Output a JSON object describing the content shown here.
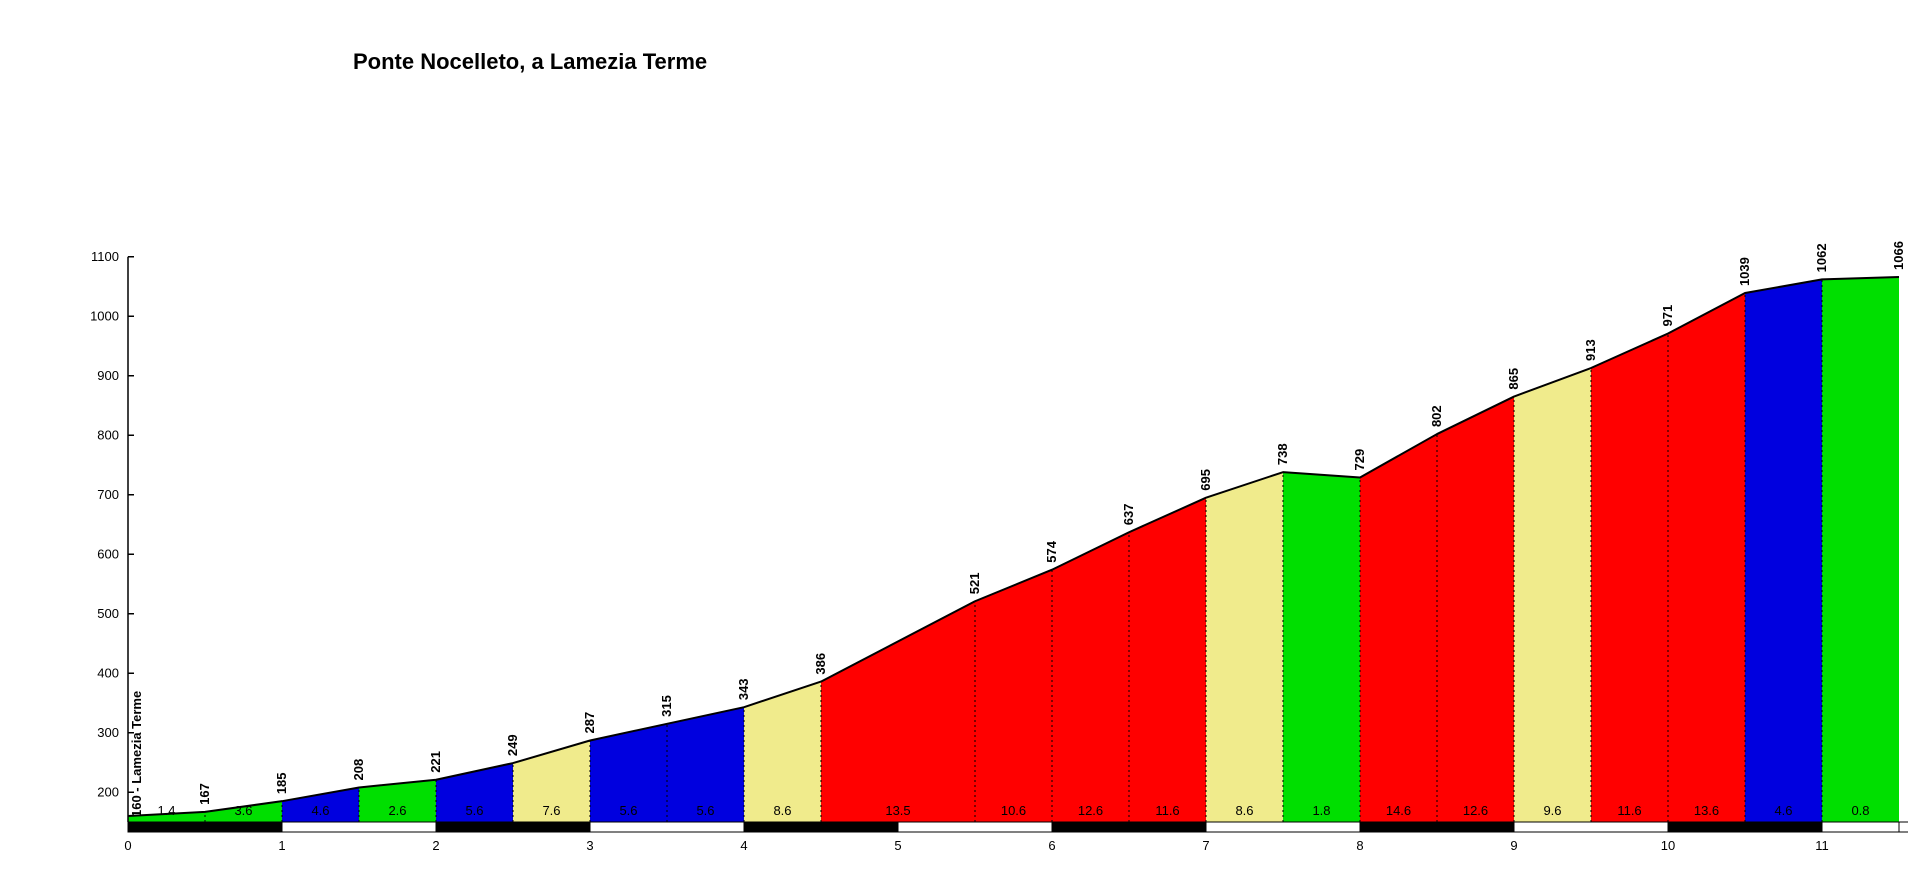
{
  "background": "#ffffff",
  "chart_data": {
    "type": "area",
    "title": "Ponte Nocelleto, a Lamezia Terme",
    "start_label": "160 - Lamezia Terme",
    "x_unit": "km",
    "y_unit": "m",
    "xlim": [
      0,
      11.5
    ],
    "ylim": [
      150,
      1100
    ],
    "x_ticks": [
      0,
      1,
      2,
      3,
      4,
      5,
      6,
      7,
      8,
      9,
      10,
      11
    ],
    "y_ticks": [
      200,
      300,
      400,
      500,
      600,
      700,
      800,
      900,
      1000,
      1100
    ],
    "grid": false,
    "legend": "none",
    "start_elevation": 160,
    "end_elevation": 1066,
    "gradient_colors": {
      "green": "#00DF00",
      "blue": "#0000DF",
      "yellow": "#F0EB8C",
      "red": "#FF0000"
    },
    "line_color": "#000000",
    "km_bar_colors": {
      "even": "#000000",
      "odd": "#FFFFFF"
    },
    "segments": [
      {
        "from_km": 0.0,
        "to_km": 0.5,
        "end_elevation": 167,
        "gradient": "1.4",
        "color": "green"
      },
      {
        "from_km": 0.5,
        "to_km": 1.0,
        "end_elevation": 185,
        "gradient": "3.6",
        "color": "green"
      },
      {
        "from_km": 1.0,
        "to_km": 1.5,
        "end_elevation": 208,
        "gradient": "4.6",
        "color": "blue"
      },
      {
        "from_km": 1.5,
        "to_km": 2.0,
        "end_elevation": 221,
        "gradient": "2.6",
        "color": "green"
      },
      {
        "from_km": 2.0,
        "to_km": 2.5,
        "end_elevation": 249,
        "gradient": "5.6",
        "color": "blue"
      },
      {
        "from_km": 2.5,
        "to_km": 3.0,
        "end_elevation": 287,
        "gradient": "7.6",
        "color": "yellow"
      },
      {
        "from_km": 3.0,
        "to_km": 3.5,
        "end_elevation": 315,
        "gradient": "5.6",
        "color": "blue"
      },
      {
        "from_km": 3.5,
        "to_km": 4.0,
        "end_elevation": 343,
        "gradient": "5.6",
        "color": "blue"
      },
      {
        "from_km": 4.0,
        "to_km": 4.5,
        "end_elevation": 386,
        "gradient": "8.6",
        "color": "yellow"
      },
      {
        "from_km": 4.5,
        "to_km": 5.5,
        "end_elevation": 521,
        "gradient": "13.5",
        "color": "red"
      },
      {
        "from_km": 5.5,
        "to_km": 6.0,
        "end_elevation": 574,
        "gradient": "10.6",
        "color": "red"
      },
      {
        "from_km": 6.0,
        "to_km": 6.5,
        "end_elevation": 637,
        "gradient": "12.6",
        "color": "red"
      },
      {
        "from_km": 6.5,
        "to_km": 7.0,
        "end_elevation": 695,
        "gradient": "11.6",
        "color": "red"
      },
      {
        "from_km": 7.0,
        "to_km": 7.5,
        "end_elevation": 738,
        "gradient": "8.6",
        "color": "yellow"
      },
      {
        "from_km": 7.5,
        "to_km": 8.0,
        "end_elevation": 729,
        "gradient": "1.8",
        "color": "green"
      },
      {
        "from_km": 8.0,
        "to_km": 8.5,
        "end_elevation": 802,
        "gradient": "14.6",
        "color": "red"
      },
      {
        "from_km": 8.5,
        "to_km": 9.0,
        "end_elevation": 865,
        "gradient": "12.6",
        "color": "red"
      },
      {
        "from_km": 9.0,
        "to_km": 9.5,
        "end_elevation": 913,
        "gradient": "9.6",
        "color": "yellow"
      },
      {
        "from_km": 9.5,
        "to_km": 10.0,
        "end_elevation": 971,
        "gradient": "11.6",
        "color": "red"
      },
      {
        "from_km": 10.0,
        "to_km": 10.5,
        "end_elevation": 1039,
        "gradient": "13.6",
        "color": "red"
      },
      {
        "from_km": 10.5,
        "to_km": 11.0,
        "end_elevation": 1062,
        "gradient": "4.6",
        "color": "blue"
      },
      {
        "from_km": 11.0,
        "to_km": 11.5,
        "end_elevation": 1066,
        "gradient": "0.8",
        "color": "green"
      }
    ]
  }
}
